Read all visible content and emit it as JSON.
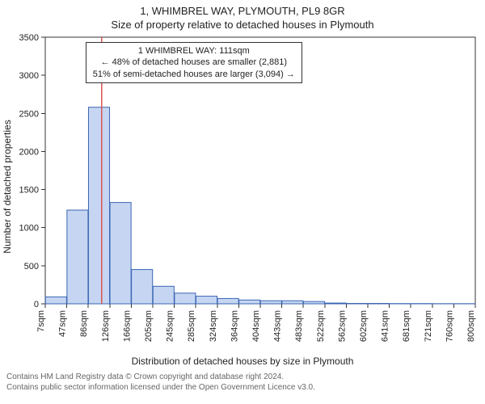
{
  "title_line1": "1, WHIMBREL WAY, PLYMOUTH, PL9 8GR",
  "title_line2": "Size of property relative to detached houses in Plymouth",
  "y_axis_label": "Number of detached properties",
  "x_axis_label": "Distribution of detached houses by size in Plymouth",
  "footer_line1": "Contains HM Land Registry data © Crown copyright and database right 2024.",
  "footer_line2": "Contains public sector information licensed under the Open Government Licence v3.0.",
  "callout": {
    "line1": "1 WHIMBREL WAY: 111sqm",
    "line2": "← 48% of detached houses are smaller (2,881)",
    "line3": "51% of semi-detached houses are larger (3,094) →"
  },
  "chart": {
    "type": "histogram",
    "ylim": [
      0,
      3500
    ],
    "ytick_step": 500,
    "bar_fill": "#c6d6f2",
    "bar_stroke": "#3a66b3",
    "reference_line_color": "#d9534f",
    "reference_value_x": 111,
    "plot_border_color": "#333333",
    "background_color": "#ffffff",
    "x_labels": [
      "7sqm",
      "47sqm",
      "86sqm",
      "126sqm",
      "166sqm",
      "205sqm",
      "245sqm",
      "285sqm",
      "324sqm",
      "364sqm",
      "404sqm",
      "443sqm",
      "483sqm",
      "522sqm",
      "562sqm",
      "602sqm",
      "641sqm",
      "681sqm",
      "721sqm",
      "760sqm",
      "800sqm"
    ],
    "bars": [
      90,
      1230,
      2580,
      1330,
      450,
      230,
      140,
      100,
      70,
      50,
      40,
      40,
      30,
      10,
      5,
      5,
      3,
      3,
      2,
      2
    ]
  },
  "yticks": [
    "0",
    "500",
    "1000",
    "1500",
    "2000",
    "2500",
    "3000",
    "3500"
  ]
}
